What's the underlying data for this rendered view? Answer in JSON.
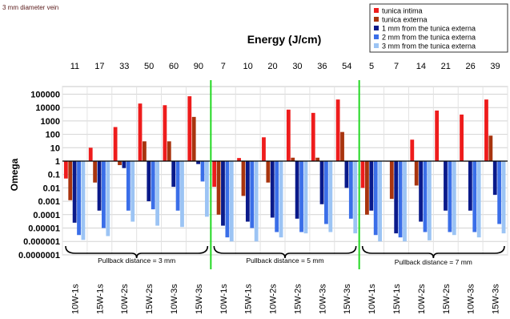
{
  "chart_data": {
    "type": "bar",
    "corner_label": "3 mm diameter vein",
    "top_axis_title": "Energy (J/cm)",
    "ylabel": "Omega",
    "y_scale": "log",
    "ylim": [
      1e-07,
      1000000.0
    ],
    "y_ticks": [
      "0.0000001",
      "0.000001",
      "0.00001",
      "0.0001",
      "0.001",
      "0.01",
      "0.1",
      "1",
      "10",
      "100",
      "1000",
      "10000",
      "100000"
    ],
    "grid": true,
    "legend_position": "top-right",
    "categories": [
      "10W-1s",
      "15W-1s",
      "10W-2s",
      "15W-2s",
      "10W-3s",
      "15W-3s",
      "10W-1s",
      "15W-1s",
      "10W-2s",
      "15W-2s",
      "10W-3s",
      "15W-3s",
      "10W-1s",
      "15W-1s",
      "10W-2s",
      "15W-2s",
      "10W-3s",
      "15W-3s"
    ],
    "energy_labels": [
      "11",
      "17",
      "33",
      "50",
      "60",
      "90",
      "7",
      "10",
      "20",
      "30",
      "36",
      "54",
      "5",
      "7",
      "14",
      "21",
      "26",
      "39"
    ],
    "group_labels": [
      "Pullback distance = 3 mm",
      "Pullback distance = 5 mm",
      "Pullback distance = 7 mm"
    ],
    "series": [
      {
        "name": "tunica intima",
        "color": "#ee1c1c",
        "values": [
          0.05,
          10,
          350,
          20000,
          15000,
          70000,
          0.012,
          1.7,
          60,
          7000,
          4000,
          40000,
          0.01,
          1,
          40,
          6000,
          3000,
          40000
        ]
      },
      {
        "name": "tunica externa",
        "color": "#a8340e",
        "values": [
          0.0012,
          0.025,
          0.5,
          30,
          30,
          2000,
          0.0001,
          0.0025,
          0.025,
          1.8,
          1.8,
          150,
          0.0001,
          0.0015,
          0.015,
          1,
          1,
          80
        ]
      },
      {
        "name": "1 mm from the tunica externa",
        "color": "#0a1a8a",
        "values": [
          2.5e-05,
          0.0002,
          0.3,
          0.001,
          0.012,
          0.6,
          1.5e-05,
          3e-05,
          6e-05,
          5e-05,
          0.0006,
          0.01,
          0.0002,
          4e-06,
          3e-05,
          0.0002,
          0.0002,
          0.003
        ]
      },
      {
        "name": "2 mm from the tunica externa",
        "color": "#3a6ee8",
        "values": [
          3e-06,
          1e-05,
          0.0002,
          0.00025,
          0.0002,
          0.03,
          2e-06,
          1e-05,
          5e-06,
          5e-06,
          2e-05,
          5e-05,
          3e-06,
          2e-06,
          5e-06,
          5e-06,
          5e-06,
          2e-05
        ]
      },
      {
        "name": "3 mm from the tunica externa",
        "color": "#9cc4f4",
        "values": [
          1.3e-06,
          2.5e-06,
          3e-05,
          1.5e-05,
          1.2e-05,
          7e-05,
          1e-06,
          1e-06,
          2e-06,
          4e-06,
          5e-06,
          4e-06,
          1e-06,
          1e-06,
          1.2e-06,
          3e-06,
          2e-06,
          4e-06
        ]
      }
    ]
  }
}
